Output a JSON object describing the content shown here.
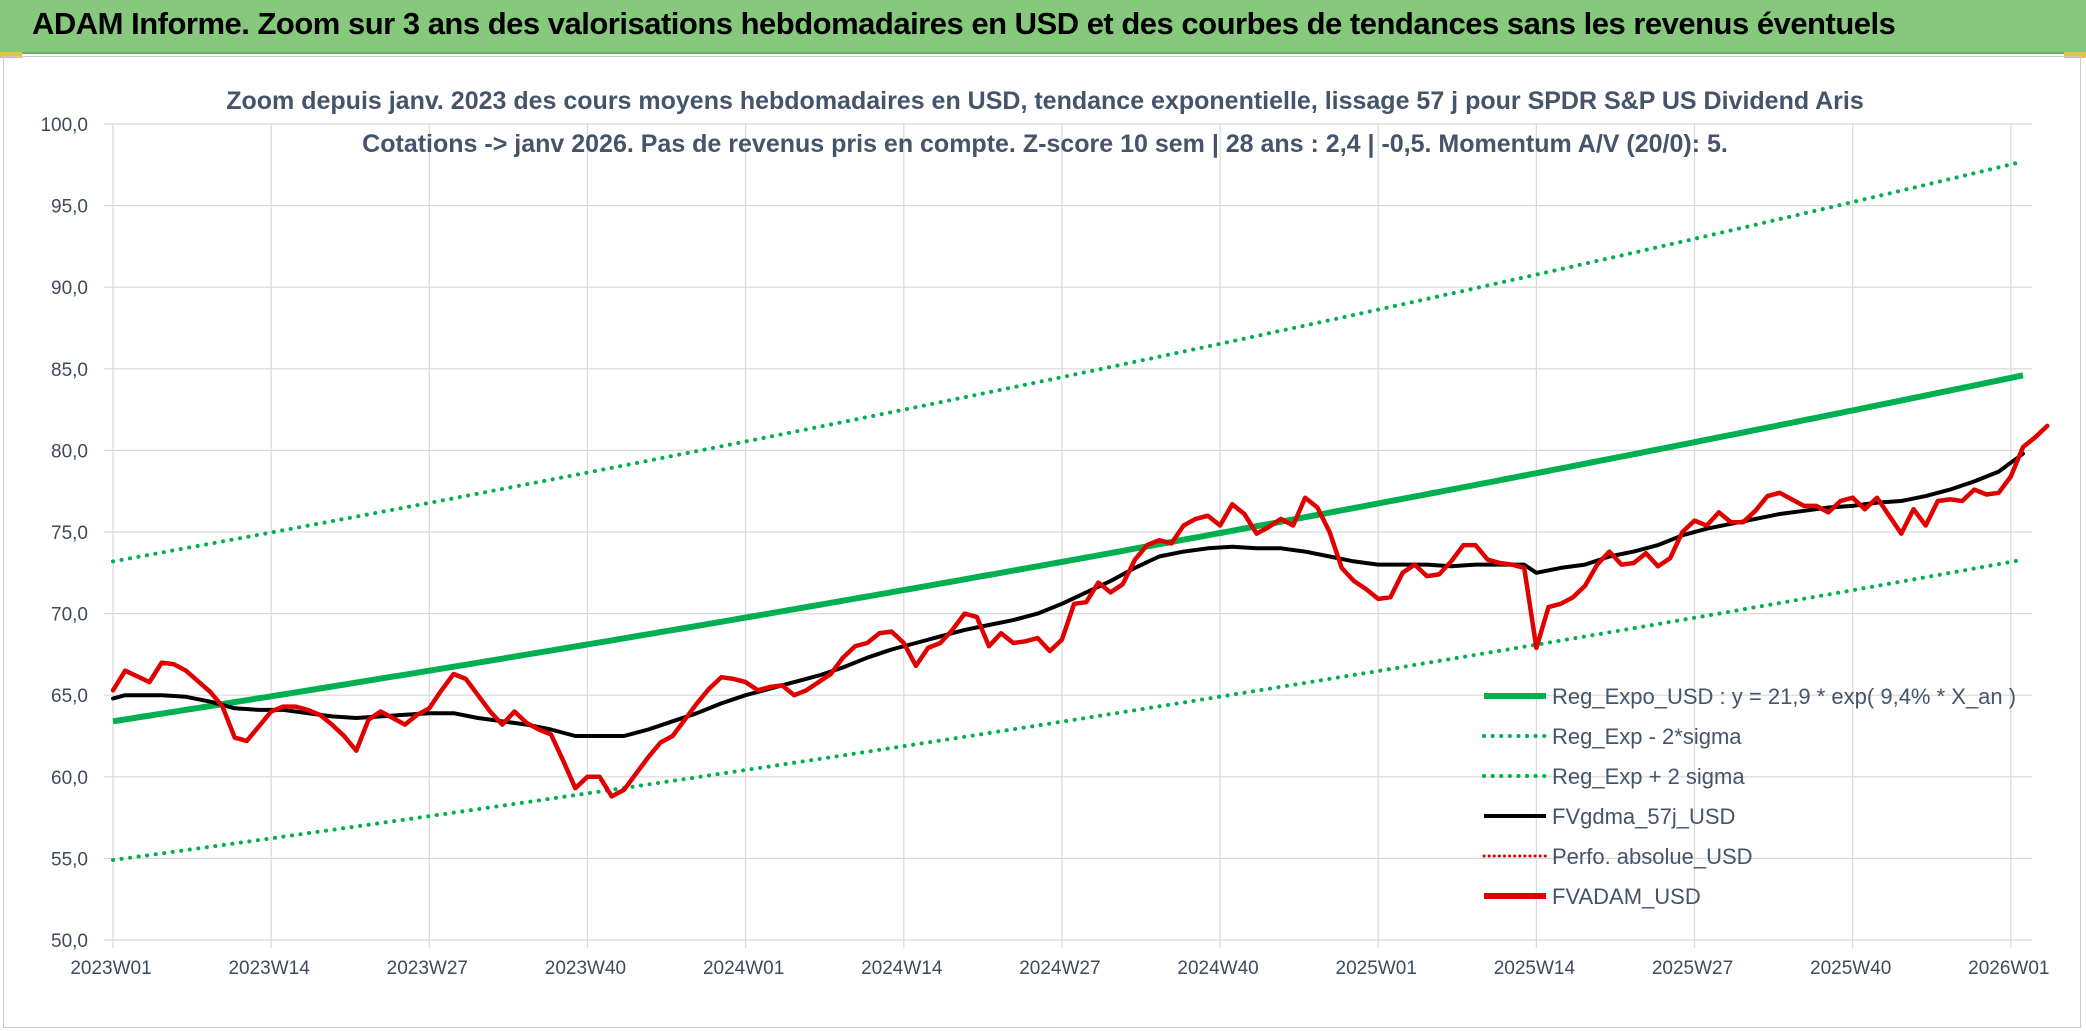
{
  "banner": {
    "title": "ADAM Informe. Zoom sur 3 ans des valorisations hebdomadaires en USD et des courbes de tendances sans les revenus éventuels"
  },
  "colors": {
    "banner_bg": "#86c97d",
    "trend": "#00b050",
    "fvgdma": "#000000",
    "fvadam": "#e00000",
    "perfo": "#e00000",
    "grid": "#d9d9d9",
    "axis_text": "#3f4a5a"
  },
  "chart_data": {
    "type": "line",
    "title_lines": [
      "Zoom depuis janv. 2023 des cours moyens hebdomadaires en USD, tendance exponentielle, lissage 57 j pour SPDR S&P US Dividend Aris",
      "Cotations -> janv 2026. Pas de revenus pris en compte. Z-score 10 sem | 28 ans : 2,4 | -0,5. Momentum A/V (20/0): 5."
    ],
    "x_range": [
      0,
      157
    ],
    "x_ticks": [
      {
        "x": 0,
        "label": "2023W01"
      },
      {
        "x": 13,
        "label": "2023W14"
      },
      {
        "x": 26,
        "label": "2023W27"
      },
      {
        "x": 39,
        "label": "2023W40"
      },
      {
        "x": 52,
        "label": "2024W01"
      },
      {
        "x": 65,
        "label": "2024W14"
      },
      {
        "x": 78,
        "label": "2024W27"
      },
      {
        "x": 91,
        "label": "2024W40"
      },
      {
        "x": 104,
        "label": "2025W01"
      },
      {
        "x": 117,
        "label": "2025W14"
      },
      {
        "x": 130,
        "label": "2025W27"
      },
      {
        "x": 143,
        "label": "2025W40"
      },
      {
        "x": 156,
        "label": "2026W01"
      }
    ],
    "ylim": [
      50,
      100
    ],
    "y_ticks": [
      50,
      55,
      60,
      65,
      70,
      75,
      80,
      85,
      90,
      95,
      100
    ],
    "y_tick_labels": [
      "50,0",
      "55,0",
      "60,0",
      "65,0",
      "70,0",
      "75,0",
      "80,0",
      "85,0",
      "90,0",
      "95,0",
      "100,0"
    ],
    "series": [
      {
        "key": "reg",
        "name": "Reg_Expo_USD : y = 21,9 * exp( 9,4% *  X_an )",
        "style": "solid-thick",
        "color": "#00b050",
        "start": 63.4,
        "end": 84.6
      },
      {
        "key": "lower",
        "name": "Reg_Exp - 2*sigma",
        "style": "dotted",
        "color": "#00b050",
        "start": 54.9,
        "end": 73.3
      },
      {
        "key": "upper",
        "name": "Reg_Exp + 2 sigma",
        "style": "dotted",
        "color": "#00b050",
        "start": 73.2,
        "end": 97.7
      },
      {
        "key": "fvgdma",
        "name": "FVgdma_57j_USD",
        "style": "solid",
        "color": "#000000",
        "points": [
          [
            0,
            64.8
          ],
          [
            1,
            65.0
          ],
          [
            3,
            65.0
          ],
          [
            4,
            65.0
          ],
          [
            6,
            64.9
          ],
          [
            8,
            64.6
          ],
          [
            10,
            64.2
          ],
          [
            12,
            64.1
          ],
          [
            14,
            64.1
          ],
          [
            16,
            63.9
          ],
          [
            18,
            63.7
          ],
          [
            20,
            63.6
          ],
          [
            22,
            63.7
          ],
          [
            24,
            63.8
          ],
          [
            26,
            63.9
          ],
          [
            28,
            63.9
          ],
          [
            30,
            63.6
          ],
          [
            32,
            63.4
          ],
          [
            34,
            63.2
          ],
          [
            36,
            62.9
          ],
          [
            38,
            62.5
          ],
          [
            40,
            62.5
          ],
          [
            42,
            62.5
          ],
          [
            44,
            62.9
          ],
          [
            46,
            63.4
          ],
          [
            48,
            63.9
          ],
          [
            50,
            64.5
          ],
          [
            52,
            65.0
          ],
          [
            54,
            65.4
          ],
          [
            56,
            65.8
          ],
          [
            58,
            66.2
          ],
          [
            60,
            66.7
          ],
          [
            62,
            67.3
          ],
          [
            64,
            67.8
          ],
          [
            66,
            68.2
          ],
          [
            68,
            68.6
          ],
          [
            70,
            69.0
          ],
          [
            72,
            69.3
          ],
          [
            74,
            69.6
          ],
          [
            76,
            70.0
          ],
          [
            78,
            70.6
          ],
          [
            80,
            71.3
          ],
          [
            82,
            72.0
          ],
          [
            84,
            72.8
          ],
          [
            86,
            73.5
          ],
          [
            88,
            73.8
          ],
          [
            90,
            74.0
          ],
          [
            92,
            74.1
          ],
          [
            94,
            74.0
          ],
          [
            96,
            74.0
          ],
          [
            98,
            73.8
          ],
          [
            100,
            73.5
          ],
          [
            102,
            73.2
          ],
          [
            104,
            73.0
          ],
          [
            106,
            73.0
          ],
          [
            108,
            73.0
          ],
          [
            110,
            72.9
          ],
          [
            112,
            73.0
          ],
          [
            114,
            73.0
          ],
          [
            116,
            73.0
          ],
          [
            117,
            72.5
          ],
          [
            119,
            72.8
          ],
          [
            121,
            73.0
          ],
          [
            123,
            73.5
          ],
          [
            125,
            73.8
          ],
          [
            127,
            74.2
          ],
          [
            129,
            74.8
          ],
          [
            131,
            75.2
          ],
          [
            133,
            75.5
          ],
          [
            135,
            75.8
          ],
          [
            137,
            76.1
          ],
          [
            139,
            76.3
          ],
          [
            141,
            76.5
          ],
          [
            143,
            76.6
          ],
          [
            145,
            76.8
          ],
          [
            147,
            76.9
          ],
          [
            149,
            77.2
          ],
          [
            151,
            77.6
          ],
          [
            153,
            78.1
          ],
          [
            155,
            78.7
          ],
          [
            157,
            79.8
          ]
        ]
      },
      {
        "key": "perfo",
        "name": "Perfo. absolue_USD",
        "style": "dotted",
        "color": "#e00000"
      },
      {
        "key": "fvadam",
        "name": "FVADAM_USD",
        "style": "solid-thick",
        "color": "#e00000",
        "points": [
          [
            0,
            65.3
          ],
          [
            1,
            66.5
          ],
          [
            3,
            65.8
          ],
          [
            4,
            67.0
          ],
          [
            5,
            66.9
          ],
          [
            6,
            66.5
          ],
          [
            8,
            65.2
          ],
          [
            9,
            64.3
          ],
          [
            10,
            62.4
          ],
          [
            11,
            62.2
          ],
          [
            12,
            63.1
          ],
          [
            13,
            64.0
          ],
          [
            14,
            64.3
          ],
          [
            15,
            64.3
          ],
          [
            16,
            64.1
          ],
          [
            17,
            63.8
          ],
          [
            18,
            63.2
          ],
          [
            19,
            62.5
          ],
          [
            20,
            61.6
          ],
          [
            21,
            63.5
          ],
          [
            22,
            64.0
          ],
          [
            23,
            63.6
          ],
          [
            24,
            63.2
          ],
          [
            25,
            63.8
          ],
          [
            26,
            64.2
          ],
          [
            27,
            65.3
          ],
          [
            28,
            66.3
          ],
          [
            29,
            66.0
          ],
          [
            30,
            65.0
          ],
          [
            31,
            64.0
          ],
          [
            32,
            63.2
          ],
          [
            33,
            64.0
          ],
          [
            34,
            63.3
          ],
          [
            35,
            62.9
          ],
          [
            36,
            62.6
          ],
          [
            37,
            61.0
          ],
          [
            38,
            59.3
          ],
          [
            39,
            60.0
          ],
          [
            40,
            60.0
          ],
          [
            41,
            58.8
          ],
          [
            42,
            59.2
          ],
          [
            43,
            60.2
          ],
          [
            44,
            61.2
          ],
          [
            45,
            62.1
          ],
          [
            46,
            62.5
          ],
          [
            47,
            63.5
          ],
          [
            48,
            64.5
          ],
          [
            49,
            65.4
          ],
          [
            50,
            66.1
          ],
          [
            51,
            66.0
          ],
          [
            52,
            65.8
          ],
          [
            53,
            65.3
          ],
          [
            54,
            65.5
          ],
          [
            55,
            65.6
          ],
          [
            56,
            65.0
          ],
          [
            57,
            65.3
          ],
          [
            58,
            65.8
          ],
          [
            59,
            66.3
          ],
          [
            60,
            67.3
          ],
          [
            61,
            68.0
          ],
          [
            62,
            68.2
          ],
          [
            63,
            68.8
          ],
          [
            64,
            68.9
          ],
          [
            65,
            68.2
          ],
          [
            66,
            66.8
          ],
          [
            67,
            67.9
          ],
          [
            68,
            68.2
          ],
          [
            69,
            69.0
          ],
          [
            70,
            70.0
          ],
          [
            71,
            69.8
          ],
          [
            72,
            68.0
          ],
          [
            73,
            68.8
          ],
          [
            74,
            68.2
          ],
          [
            75,
            68.3
          ],
          [
            76,
            68.5
          ],
          [
            77,
            67.7
          ],
          [
            78,
            68.4
          ],
          [
            79,
            70.6
          ],
          [
            80,
            70.7
          ],
          [
            81,
            71.9
          ],
          [
            82,
            71.3
          ],
          [
            83,
            71.8
          ],
          [
            84,
            73.3
          ],
          [
            85,
            74.2
          ],
          [
            86,
            74.5
          ],
          [
            87,
            74.3
          ],
          [
            88,
            75.4
          ],
          [
            89,
            75.8
          ],
          [
            90,
            76.0
          ],
          [
            91,
            75.4
          ],
          [
            92,
            76.7
          ],
          [
            93,
            76.1
          ],
          [
            94,
            74.9
          ],
          [
            95,
            75.3
          ],
          [
            96,
            75.8
          ],
          [
            97,
            75.4
          ],
          [
            98,
            77.1
          ],
          [
            99,
            76.5
          ],
          [
            100,
            75.0
          ],
          [
            101,
            72.8
          ],
          [
            102,
            72.0
          ],
          [
            103,
            71.5
          ],
          [
            104,
            70.9
          ],
          [
            105,
            71.0
          ],
          [
            106,
            72.5
          ],
          [
            107,
            73.0
          ],
          [
            108,
            72.3
          ],
          [
            109,
            72.4
          ],
          [
            110,
            73.2
          ],
          [
            111,
            74.2
          ],
          [
            112,
            74.2
          ],
          [
            113,
            73.3
          ],
          [
            114,
            73.1
          ],
          [
            115,
            73.0
          ],
          [
            116,
            72.8
          ],
          [
            117,
            67.9
          ],
          [
            118,
            70.4
          ],
          [
            119,
            70.6
          ],
          [
            120,
            71.0
          ],
          [
            121,
            71.7
          ],
          [
            122,
            73.0
          ],
          [
            123,
            73.8
          ],
          [
            124,
            73.0
          ],
          [
            125,
            73.1
          ],
          [
            126,
            73.7
          ],
          [
            127,
            72.9
          ],
          [
            128,
            73.4
          ],
          [
            129,
            75.0
          ],
          [
            130,
            75.7
          ],
          [
            131,
            75.4
          ],
          [
            132,
            76.2
          ],
          [
            133,
            75.6
          ],
          [
            134,
            75.6
          ],
          [
            135,
            76.3
          ],
          [
            136,
            77.2
          ],
          [
            137,
            77.4
          ],
          [
            138,
            77.0
          ],
          [
            139,
            76.6
          ],
          [
            140,
            76.6
          ],
          [
            141,
            76.2
          ],
          [
            142,
            76.9
          ],
          [
            143,
            77.1
          ],
          [
            144,
            76.4
          ],
          [
            145,
            77.1
          ],
          [
            146,
            76.0
          ],
          [
            147,
            74.9
          ],
          [
            148,
            76.4
          ],
          [
            149,
            75.4
          ],
          [
            150,
            76.9
          ],
          [
            151,
            77.0
          ],
          [
            152,
            76.9
          ],
          [
            153,
            77.6
          ],
          [
            154,
            77.3
          ],
          [
            155,
            77.4
          ],
          [
            156,
            78.4
          ],
          [
            157,
            80.2
          ],
          [
            158,
            80.8
          ],
          [
            159,
            81.5
          ]
        ]
      }
    ],
    "legend_position": "bottom-right"
  }
}
